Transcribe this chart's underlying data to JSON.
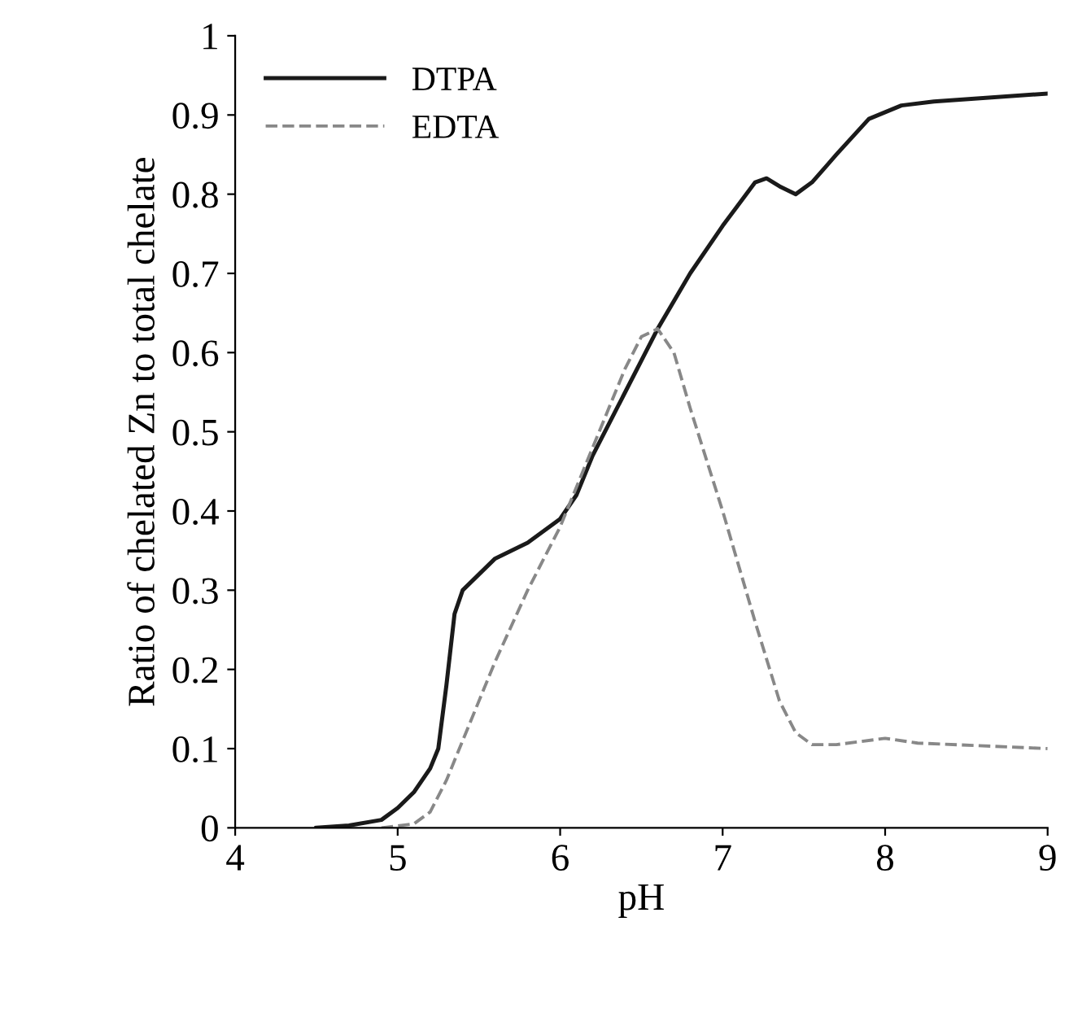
{
  "chart_data": {
    "type": "line",
    "xlabel": "pH",
    "ylabel": "Ratio of chelated Zn to total chelate",
    "xlim": [
      4,
      9
    ],
    "ylim": [
      0,
      1
    ],
    "xticks": [
      4,
      5,
      6,
      7,
      8,
      9
    ],
    "yticks": [
      0,
      0.1,
      0.2,
      0.3,
      0.4,
      0.5,
      0.6,
      0.7,
      0.8,
      0.9,
      1
    ],
    "grid": false,
    "legend": "top left",
    "marker": "none",
    "series": [
      {
        "name": "DTPA",
        "color": "#1a1a1a",
        "line_style": "solid",
        "x": [
          4.5,
          4.7,
          4.9,
          5.0,
          5.1,
          5.2,
          5.25,
          5.3,
          5.35,
          5.4,
          5.5,
          5.6,
          5.8,
          6.0,
          6.1,
          6.2,
          6.4,
          6.6,
          6.8,
          7.0,
          7.2,
          7.27,
          7.35,
          7.45,
          7.55,
          7.7,
          7.9,
          8.1,
          8.3,
          9.0
        ],
        "values": [
          0,
          0.003,
          0.01,
          0.025,
          0.045,
          0.075,
          0.1,
          0.18,
          0.27,
          0.3,
          0.32,
          0.34,
          0.36,
          0.39,
          0.42,
          0.47,
          0.55,
          0.63,
          0.7,
          0.76,
          0.815,
          0.82,
          0.81,
          0.8,
          0.815,
          0.85,
          0.895,
          0.912,
          0.917,
          0.927
        ]
      },
      {
        "name": "EDTA",
        "color": "#888888",
        "line_style": "dashed",
        "x": [
          4.9,
          5.1,
          5.2,
          5.3,
          5.4,
          5.5,
          5.6,
          5.8,
          6.0,
          6.2,
          6.4,
          6.5,
          6.6,
          6.7,
          6.8,
          7.0,
          7.2,
          7.35,
          7.45,
          7.55,
          7.7,
          8.0,
          8.2,
          9.0
        ],
        "values": [
          0,
          0.005,
          0.02,
          0.06,
          0.11,
          0.16,
          0.21,
          0.3,
          0.38,
          0.48,
          0.58,
          0.62,
          0.63,
          0.6,
          0.53,
          0.4,
          0.26,
          0.16,
          0.12,
          0.105,
          0.105,
          0.113,
          0.107,
          0.1
        ]
      }
    ]
  }
}
